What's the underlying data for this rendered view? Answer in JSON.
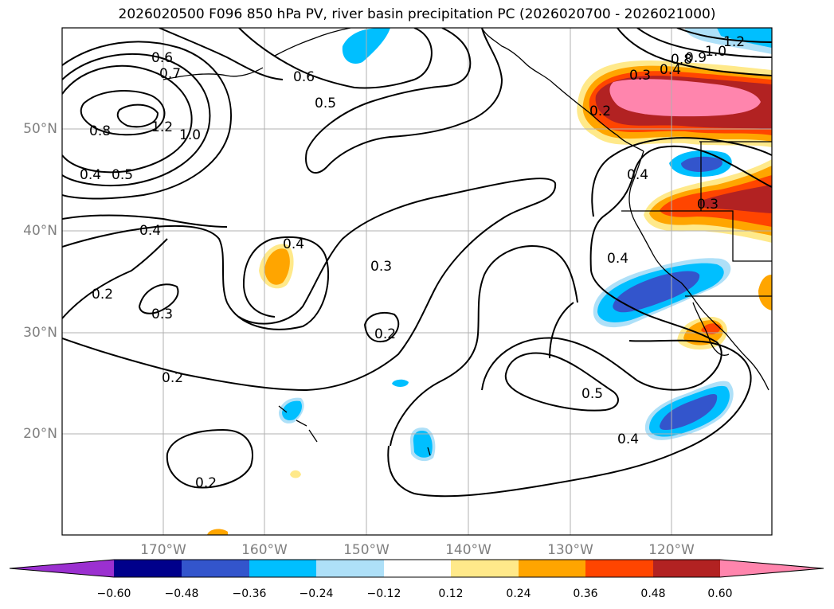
{
  "title": "2026020500 F096 850 hPa PV, river basin precipitation PC (2026020700 - 2026021000)",
  "lat_labels": [
    "50°N",
    "40°N",
    "30°N",
    "20°N"
  ],
  "lon_labels": [
    "170°W",
    "160°W",
    "150°W",
    "140°W",
    "130°W",
    "120°W"
  ],
  "contour_labels": [
    "0.6",
    "0.7",
    "0.8",
    "1.2",
    "1.0",
    "0.4",
    "0.5",
    "0.6",
    "0.5",
    "0.4",
    "0.3",
    "0.2",
    "0.3",
    "0.4",
    "0.2",
    "0.2",
    "0.2",
    "0.5",
    "0.4",
    "0.3",
    "0.4",
    "0.4",
    "1.2",
    "1.0",
    "0.9",
    "0.8",
    "0.4",
    "0.3",
    "0.2"
  ],
  "colorbar": {
    "ticks": [
      "−0.60",
      "−0.48",
      "−0.36",
      "−0.24",
      "−0.12",
      "0.12",
      "0.24",
      "0.36",
      "0.48",
      "0.60"
    ],
    "colors": [
      "#9b30d0",
      "#00008b",
      "#3355cc",
      "#00bfff",
      "#aee0f8",
      "#ffffff",
      "#ffe98a",
      "#ffa500",
      "#ff4500",
      "#b22222",
      "#ff85ad"
    ]
  }
}
